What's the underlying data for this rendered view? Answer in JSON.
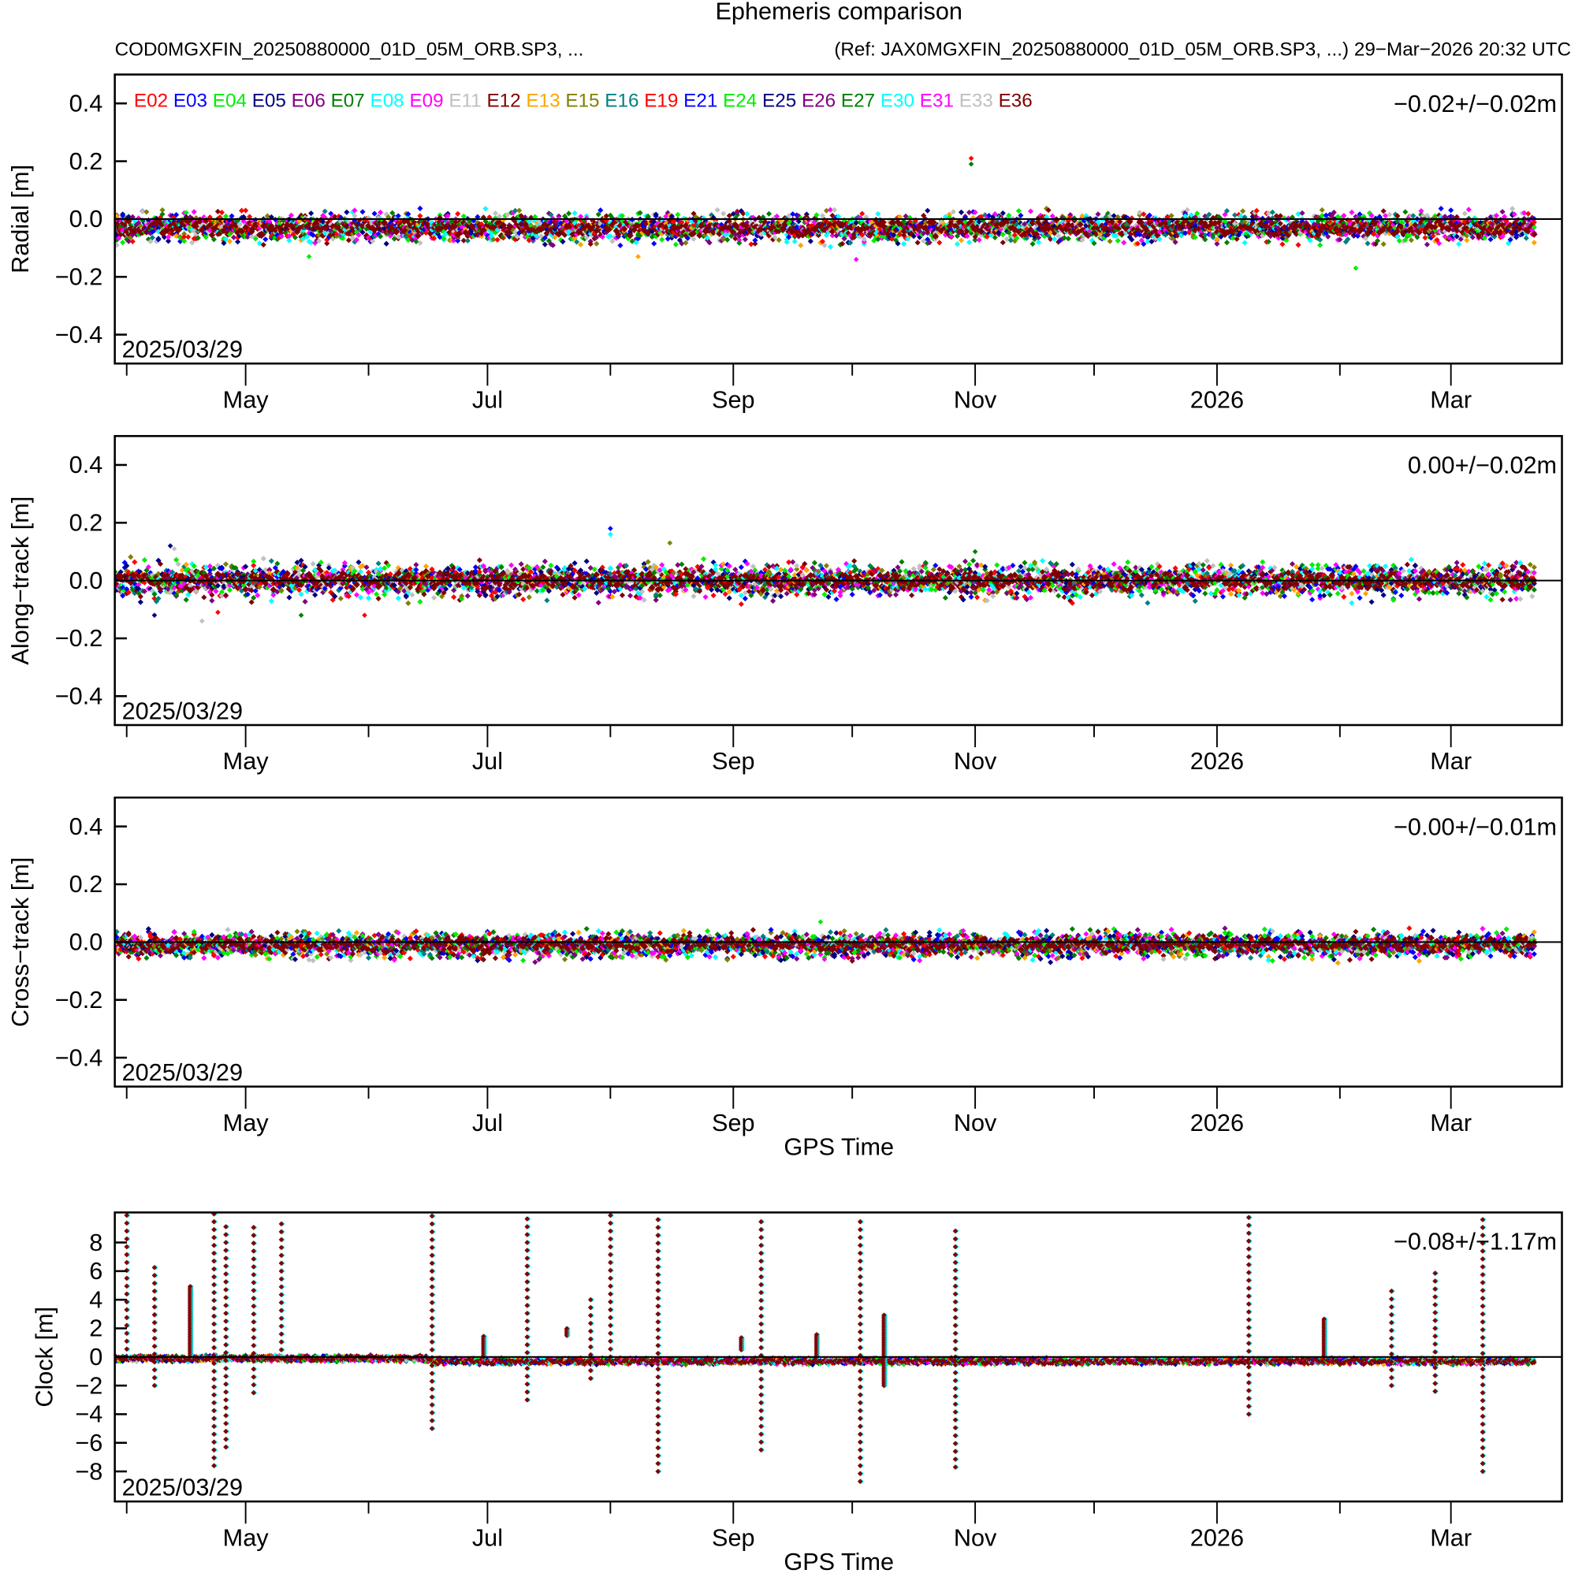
{
  "title": "Ephemeris comparison",
  "subtitle_left": "COD0MGXFIN_20250880000_01D_05M_ORB.SP3, ...",
  "subtitle_right": "(Ref: JAX0MGXFIN_20250880000_01D_05M_ORB.SP3, ...)  29−Mar−2026 20:32 UTC",
  "legend": [
    {
      "name": "E02",
      "color": "#ff0000"
    },
    {
      "name": "E03",
      "color": "#0000ff"
    },
    {
      "name": "E04",
      "color": "#00ee00"
    },
    {
      "name": "E05",
      "color": "#000080"
    },
    {
      "name": "E06",
      "color": "#800080"
    },
    {
      "name": "E07",
      "color": "#008000"
    },
    {
      "name": "E08",
      "color": "#00ffff"
    },
    {
      "name": "E09",
      "color": "#ff00ff"
    },
    {
      "name": "E11",
      "color": "#c0c0c0"
    },
    {
      "name": "E12",
      "color": "#800000"
    },
    {
      "name": "E13",
      "color": "#ffa500"
    },
    {
      "name": "E15",
      "color": "#808000"
    },
    {
      "name": "E16",
      "color": "#008080"
    },
    {
      "name": "E19",
      "color": "#ff0000"
    },
    {
      "name": "E21",
      "color": "#0000ff"
    },
    {
      "name": "E24",
      "color": "#00ee00"
    },
    {
      "name": "E25",
      "color": "#000080"
    },
    {
      "name": "E26",
      "color": "#800080"
    },
    {
      "name": "E27",
      "color": "#008000"
    },
    {
      "name": "E30",
      "color": "#00ffff"
    },
    {
      "name": "E31",
      "color": "#ff00ff"
    },
    {
      "name": "E33",
      "color": "#c0c0c0"
    },
    {
      "name": "E36",
      "color": "#800000"
    }
  ],
  "x_axis": {
    "unit": "days since 2025/03/29",
    "xlim": [
      0,
      365
    ],
    "major_ticks": [
      {
        "day": 33,
        "label": "May"
      },
      {
        "day": 94,
        "label": "Jul"
      },
      {
        "day": 156,
        "label": "Sep"
      },
      {
        "day": 217,
        "label": "Nov"
      },
      {
        "day": 278,
        "label": "2026"
      },
      {
        "day": 337,
        "label": "Mar"
      }
    ],
    "minor_ticks": [
      3,
      64,
      125,
      186,
      247,
      309
    ],
    "data_end_day": 358
  },
  "chart_data": [
    {
      "type": "scatter",
      "ylabel": "Radial [m]",
      "ylim": [
        -0.5,
        0.5
      ],
      "yticks": [
        {
          "v": 0.4,
          "label": "0.4"
        },
        {
          "v": 0.2,
          "label": "0.2"
        },
        {
          "v": 0.0,
          "label": "0.0"
        },
        {
          "v": -0.2,
          "label": "−0.2"
        },
        {
          "v": -0.4,
          "label": "−0.4"
        }
      ],
      "stat": "−0.02+/−0.02m",
      "start_label": "2025/03/29",
      "xlabel": "",
      "band_mean": -0.03,
      "band_spread": 0.035,
      "outliers": [
        {
          "day": 216,
          "y": 0.21
        },
        {
          "day": 216,
          "y": 0.19
        },
        {
          "day": 132,
          "y": -0.13
        },
        {
          "day": 49,
          "y": -0.13
        },
        {
          "day": 187,
          "y": -0.14
        },
        {
          "day": 313,
          "y": -0.17
        }
      ]
    },
    {
      "type": "scatter",
      "ylabel": "Along−track [m]",
      "ylim": [
        -0.5,
        0.5
      ],
      "yticks": [
        {
          "v": 0.4,
          "label": "0.4"
        },
        {
          "v": 0.2,
          "label": "0.2"
        },
        {
          "v": 0.0,
          "label": "0.0"
        },
        {
          "v": -0.2,
          "label": "−0.2"
        },
        {
          "v": -0.4,
          "label": "−0.4"
        }
      ],
      "stat": "0.00+/−0.02m",
      "start_label": "2025/03/29",
      "xlabel": "",
      "band_mean": 0.0,
      "band_spread": 0.04,
      "outliers": [
        {
          "day": 125,
          "y": 0.18
        },
        {
          "day": 125,
          "y": 0.16
        },
        {
          "day": 140,
          "y": 0.13
        },
        {
          "day": 14,
          "y": 0.12
        },
        {
          "day": 15,
          "y": 0.11
        },
        {
          "day": 10,
          "y": -0.12
        },
        {
          "day": 22,
          "y": -0.14
        },
        {
          "day": 26,
          "y": -0.11
        },
        {
          "day": 47,
          "y": -0.12
        },
        {
          "day": 63,
          "y": -0.12
        },
        {
          "day": 217,
          "y": 0.1
        }
      ]
    },
    {
      "type": "scatter",
      "ylabel": "Cross−track [m]",
      "ylim": [
        -0.5,
        0.5
      ],
      "yticks": [
        {
          "v": 0.4,
          "label": "0.4"
        },
        {
          "v": 0.2,
          "label": "0.2"
        },
        {
          "v": 0.0,
          "label": "0.0"
        },
        {
          "v": -0.2,
          "label": "−0.2"
        },
        {
          "v": -0.4,
          "label": "−0.4"
        }
      ],
      "stat": "−0.00+/−0.01m",
      "start_label": "2025/03/29",
      "xlabel": "GPS Time",
      "band_mean": -0.01,
      "band_spread": 0.03,
      "outliers": [
        {
          "day": 178,
          "y": 0.07
        },
        {
          "day": 179,
          "y": -0.06
        }
      ]
    },
    {
      "type": "scatter",
      "ylabel": "Clock [m]",
      "ylim": [
        -10.1,
        10.1
      ],
      "yticks": [
        {
          "v": 8,
          "label": "8"
        },
        {
          "v": 6,
          "label": "6"
        },
        {
          "v": 4,
          "label": "4"
        },
        {
          "v": 2,
          "label": "2"
        },
        {
          "v": 0,
          "label": "0"
        },
        {
          "v": -2,
          "label": "−2"
        },
        {
          "v": -4,
          "label": "−4"
        },
        {
          "v": -6,
          "label": "−6"
        },
        {
          "v": -8,
          "label": "−8"
        }
      ],
      "stat": "−0.08+/−1.17m",
      "start_label": "2025/03/29",
      "xlabel": "GPS Time",
      "band_mean": -0.3,
      "band_spread": 0.3,
      "spikes": [
        {
          "day": 3,
          "min": 0,
          "max": 10
        },
        {
          "day": 10,
          "min": -2,
          "max": 6.3
        },
        {
          "day": 19,
          "min": 0,
          "max": 5
        },
        {
          "day": 25,
          "min": -7.6,
          "max": 10
        },
        {
          "day": 28,
          "min": -6.3,
          "max": 9.5
        },
        {
          "day": 35,
          "min": -2.5,
          "max": 9.3
        },
        {
          "day": 42,
          "min": 0.5,
          "max": 9.3
        },
        {
          "day": 80,
          "min": -5,
          "max": 10
        },
        {
          "day": 93,
          "min": 0,
          "max": 1.5
        },
        {
          "day": 104,
          "min": -3,
          "max": 10
        },
        {
          "day": 114,
          "min": 1.5,
          "max": 2
        },
        {
          "day": 120,
          "min": -1.5,
          "max": 4
        },
        {
          "day": 125,
          "min": 0,
          "max": 10
        },
        {
          "day": 137,
          "min": -8,
          "max": 10
        },
        {
          "day": 158,
          "min": 0.5,
          "max": 1.4
        },
        {
          "day": 163,
          "min": -6.5,
          "max": 9.7
        },
        {
          "day": 177,
          "min": 0,
          "max": 1.6
        },
        {
          "day": 188,
          "min": -8.7,
          "max": 9.5
        },
        {
          "day": 194,
          "min": -2,
          "max": 3
        },
        {
          "day": 212,
          "min": -7.7,
          "max": 9
        },
        {
          "day": 286,
          "min": -4,
          "max": 10
        },
        {
          "day": 305,
          "min": 0,
          "max": 2.7
        },
        {
          "day": 322,
          "min": -2,
          "max": 5
        },
        {
          "day": 333,
          "min": -2.4,
          "max": 6.3
        },
        {
          "day": 345,
          "min": -8,
          "max": 10
        }
      ]
    }
  ]
}
